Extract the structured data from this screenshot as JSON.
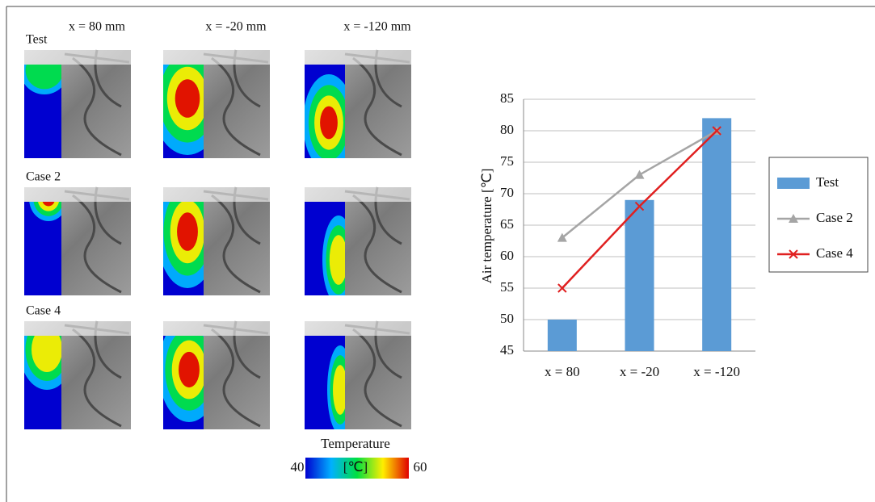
{
  "figure": {
    "columns": [
      "x = 80 mm",
      "x = -20 mm",
      "x = -120 mm"
    ],
    "rows": [
      "Test",
      "Case 2",
      "Case 4"
    ],
    "colorbar": {
      "title": "Temperature",
      "unit": "[℃]",
      "min": 40,
      "max": 60
    }
  },
  "chart_data": {
    "type": "combo",
    "ylabel": "Air temperature [℃]",
    "categories": [
      "x = 80",
      "x = -20",
      "x = -120"
    ],
    "series": [
      {
        "name": "Test",
        "type": "bar",
        "color": "#5b9bd5",
        "values": [
          50,
          69,
          82
        ]
      },
      {
        "name": "Case 2",
        "type": "line",
        "marker": "triangle",
        "color": "#a5a5a5",
        "values": [
          63,
          73,
          80
        ]
      },
      {
        "name": "Case 4",
        "type": "line",
        "marker": "x",
        "color": "#e02020",
        "values": [
          55,
          68,
          80
        ]
      }
    ],
    "ylim": [
      45,
      85
    ],
    "yticks": [
      45,
      50,
      55,
      60,
      65,
      70,
      75,
      80,
      85
    ],
    "grid": true,
    "legend": "right"
  }
}
